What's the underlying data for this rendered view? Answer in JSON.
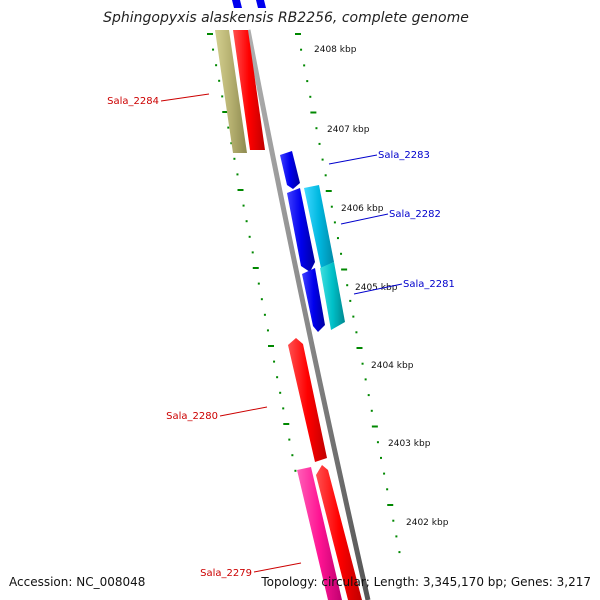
{
  "title": "Sphingopyxis alaskensis RB2256, complete genome",
  "kbp_labels": [
    "2408 kbp",
    "2407 kbp",
    "2406 kbp",
    "2405 kbp",
    "2404 kbp",
    "2403 kbp",
    "2402 kbp"
  ],
  "genes": [
    {
      "label": "Sala_2284",
      "color": "#ff0000",
      "label_color": "#cc0000"
    },
    {
      "label": "Sala_2283",
      "color": "#0000ee",
      "label_color": "#0000cc"
    },
    {
      "label": "Sala_2282",
      "color": "#00bbee",
      "label_color": "#0000cc"
    },
    {
      "label": "Sala_2281",
      "color": "#00bbcc",
      "label_color": "#0000cc"
    },
    {
      "label": "Sala_2280",
      "color": "#ff0000",
      "label_color": "#cc0000"
    },
    {
      "label": "Sala_2279",
      "color": "#ff1493",
      "label_color": "#cc0000"
    }
  ],
  "footer": {
    "accession": "Accession: NC_008048",
    "topology": "Topology: circular; Length: 3,345,170 bp; Genes: 3,217"
  },
  "colors": {
    "backbone": "#888888",
    "tick": "#008800",
    "olive": "#b5b070",
    "red": "#ff0000",
    "blue": "#0000ee",
    "cyan": "#00b8e0",
    "magenta": "#ff1493"
  }
}
